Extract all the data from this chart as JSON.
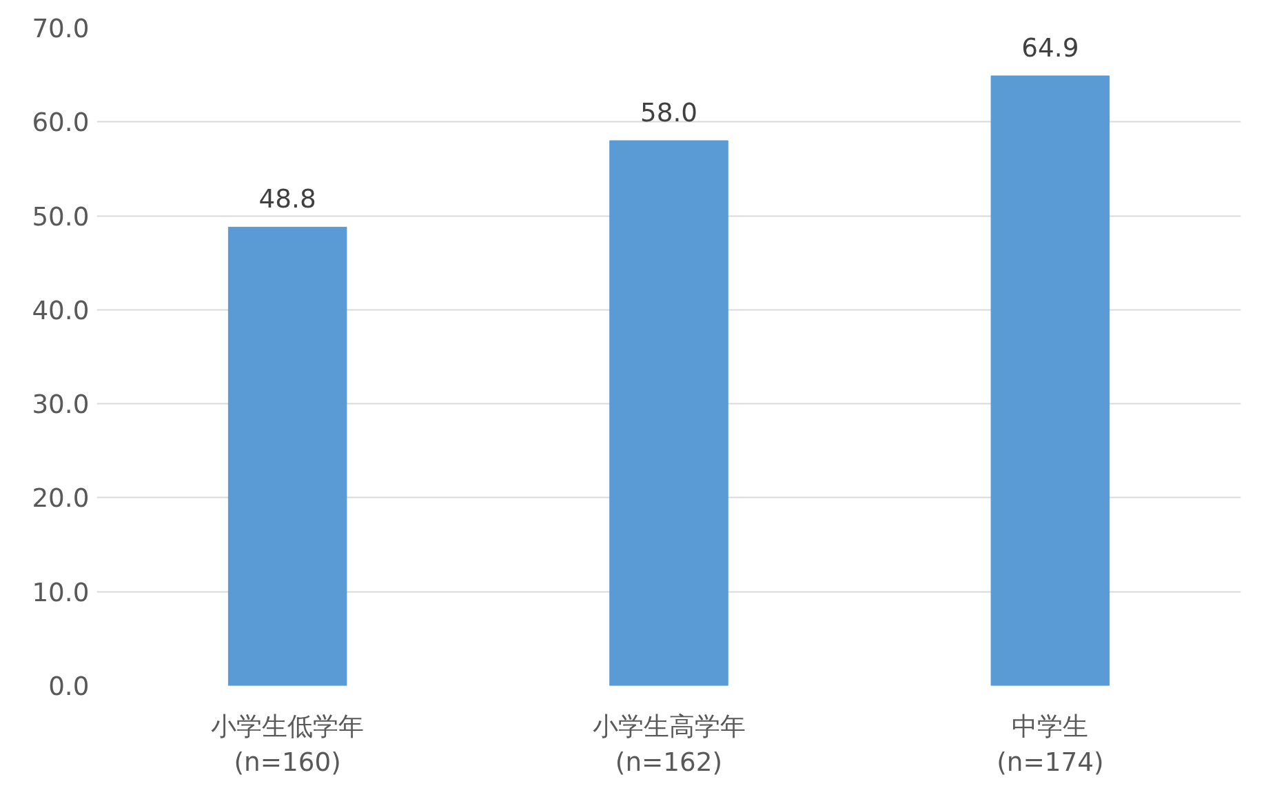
{
  "chart_data": {
    "type": "bar",
    "categories": [
      "小学生低学年\n(n=160)",
      "小学生高学年\n(n=162)",
      "中学生\n(n=174)"
    ],
    "values": [
      48.8,
      58.0,
      64.9
    ],
    "color": "#5b9bd5",
    "ylim": [
      0,
      70
    ],
    "yticks": [
      {
        "value": 0,
        "label": "0.0"
      },
      {
        "value": 10,
        "label": "10.0"
      },
      {
        "value": 20,
        "label": "20.0"
      },
      {
        "value": 30,
        "label": "30.0"
      },
      {
        "value": 40,
        "label": "40.0"
      },
      {
        "value": 50,
        "label": "50.0"
      },
      {
        "value": 60,
        "label": "60.0"
      },
      {
        "value": 70,
        "label": "70.0"
      }
    ],
    "value_labels": [
      "48.8",
      "58.0",
      "64.9"
    ],
    "grid": "y"
  }
}
